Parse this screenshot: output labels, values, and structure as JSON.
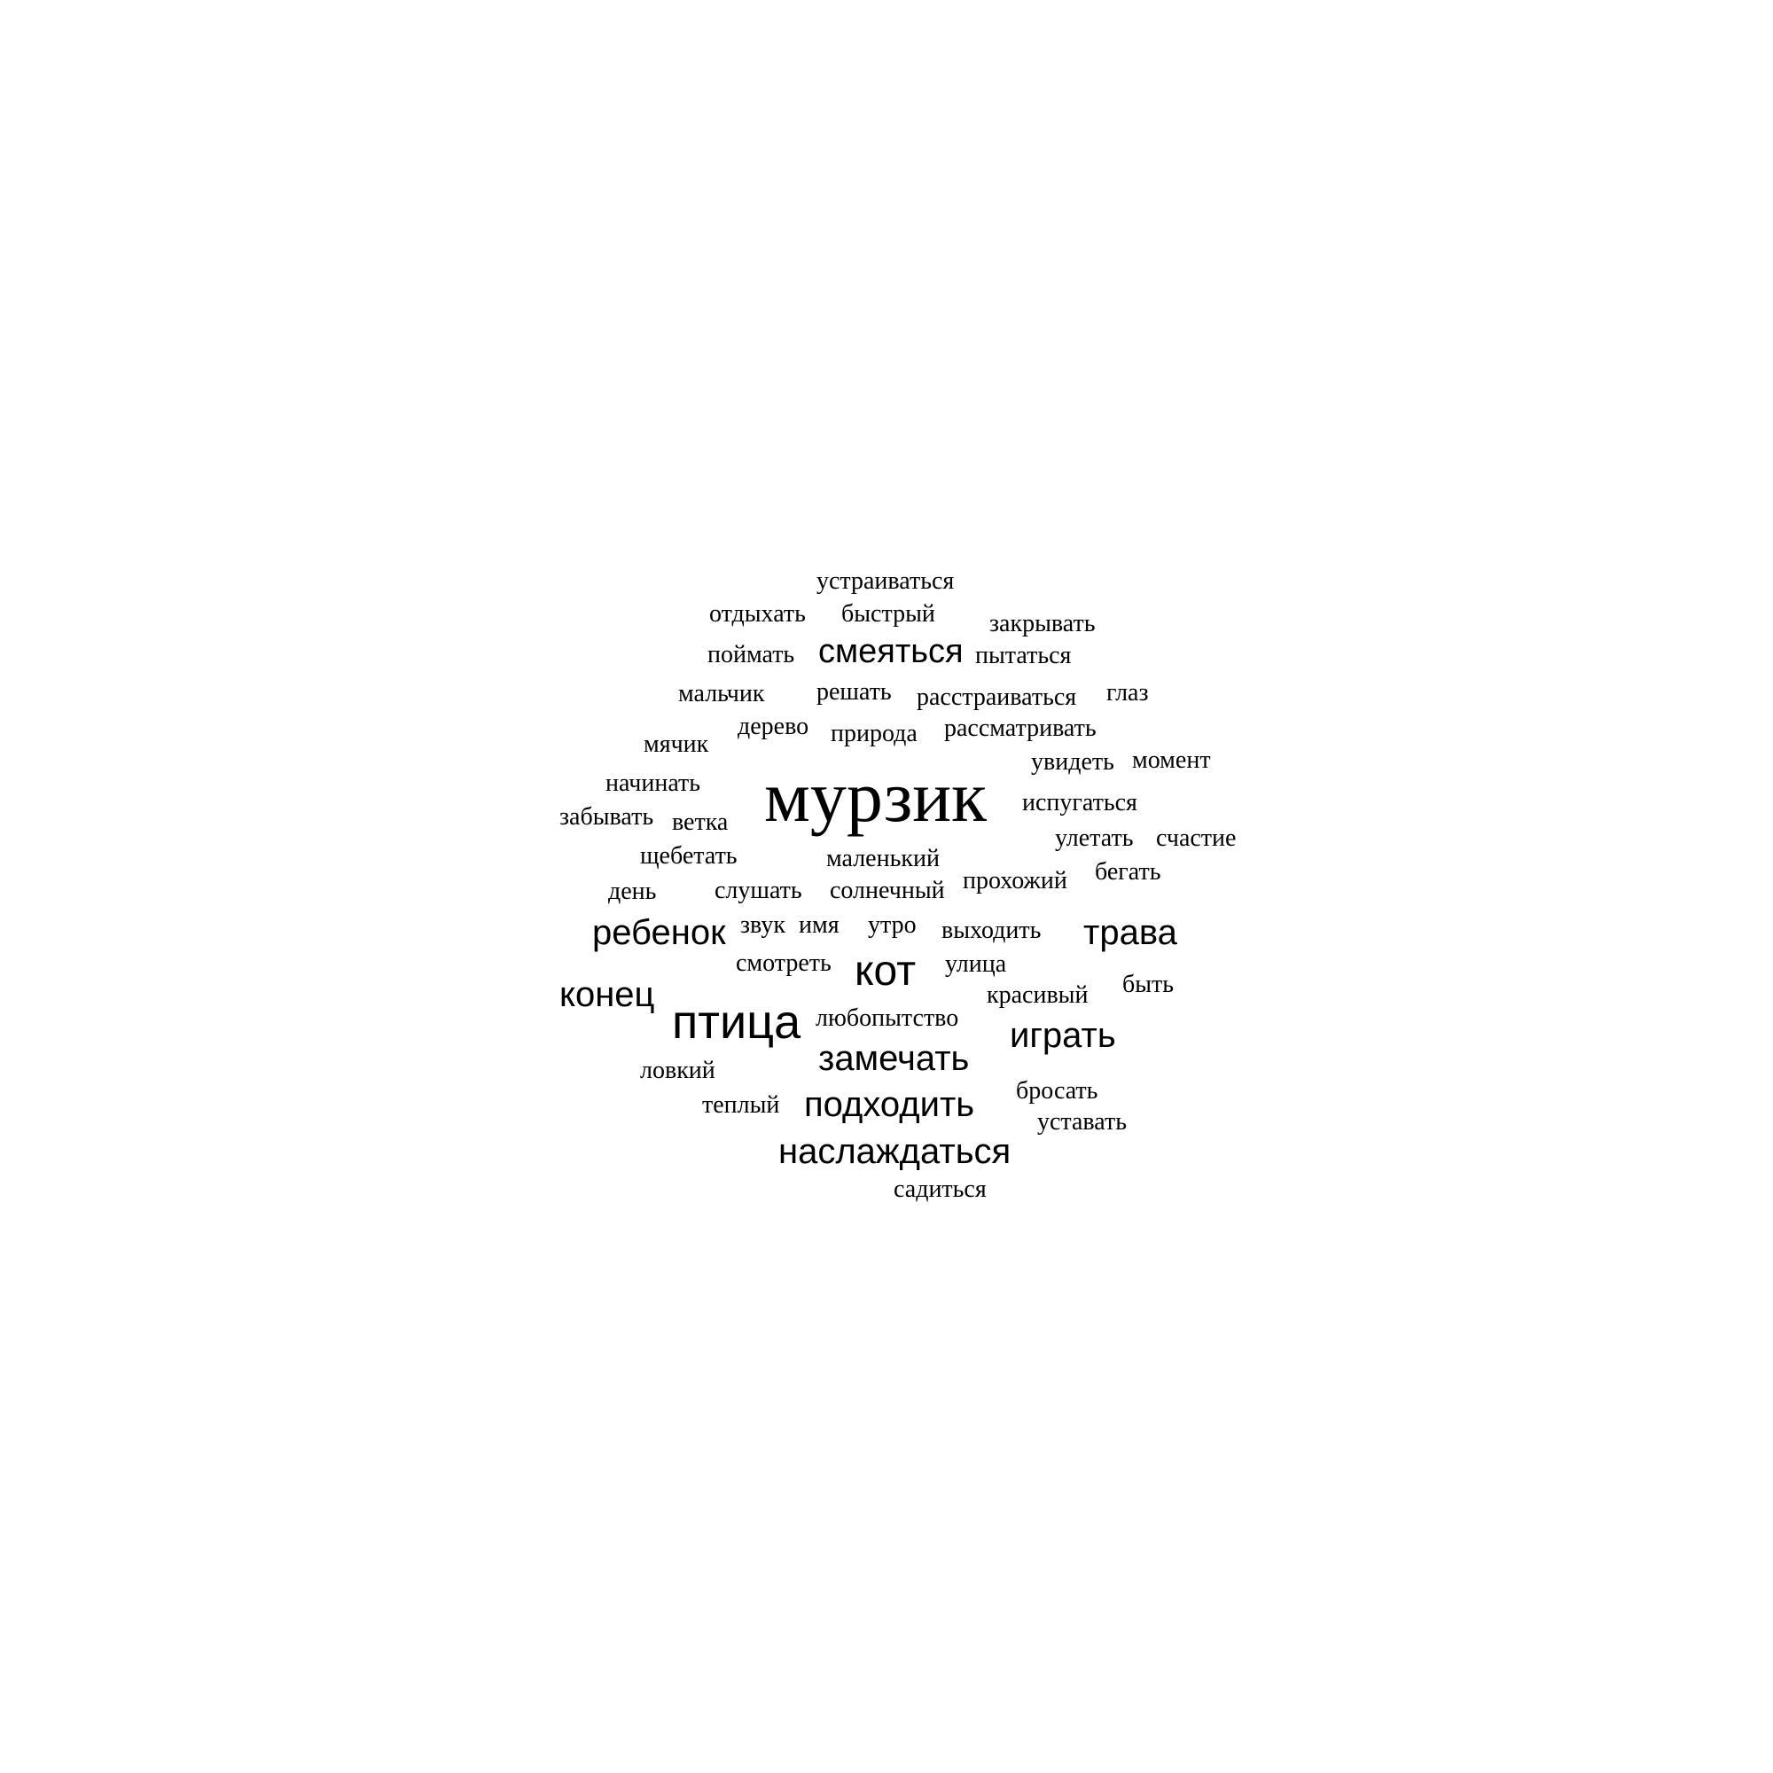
{
  "text_color": "#000000",
  "background_color": "#ffffff",
  "words": [
    "устраиваться",
    "отдыхать",
    "быстрый",
    "закрывать",
    "поймать",
    "смеяться",
    "пытаться",
    "мальчик",
    "решать",
    "расстраиваться",
    "глаз",
    "дерево",
    "природа",
    "рассматривать",
    "мячик",
    "увидеть",
    "момент",
    "начинать",
    "мурзик",
    "испугаться",
    "забывать",
    "ветка",
    "улетать",
    "счастие",
    "щебетать",
    "маленький",
    "бегать",
    "прохожий",
    "день",
    "слушать",
    "солнечный",
    "ребенок",
    "звук",
    "имя",
    "утро",
    "выходить",
    "трава",
    "смотреть",
    "кот",
    "улица",
    "конец",
    "красивый",
    "быть",
    "птица",
    "любопытство",
    "играть",
    "замечать",
    "ловкий",
    "бросать",
    "теплый",
    "подходить",
    "уставать",
    "наслаждаться",
    "садиться"
  ]
}
